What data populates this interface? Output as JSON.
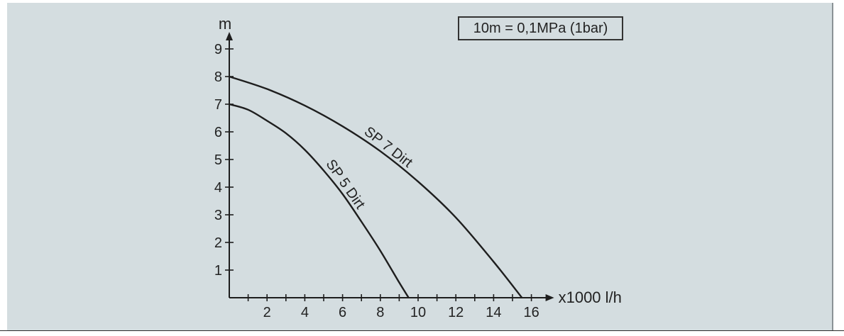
{
  "note": "10m = 0,1MPa (1bar)",
  "chart_data": {
    "type": "line",
    "ylabel": "m",
    "xlabel": "x1000 l/h",
    "xlim": [
      0,
      16
    ],
    "ylim": [
      0,
      9
    ],
    "x_ticks": [
      2,
      4,
      6,
      8,
      10,
      12,
      14,
      16
    ],
    "y_ticks": [
      1,
      2,
      3,
      4,
      5,
      6,
      7,
      8,
      9
    ],
    "grid": false,
    "series": [
      {
        "name": "SP 5 Dirt",
        "x": [
          0,
          1,
          2,
          3,
          4,
          5,
          6,
          7,
          8,
          9,
          9.5
        ],
        "y": [
          7.0,
          6.8,
          6.4,
          5.95,
          5.35,
          4.6,
          3.75,
          2.75,
          1.7,
          0.55,
          0
        ]
      },
      {
        "name": "SP 7 Dirt",
        "x": [
          0,
          2,
          4,
          6,
          8,
          10,
          12,
          14,
          15.5
        ],
        "y": [
          8.0,
          7.55,
          6.95,
          6.2,
          5.3,
          4.2,
          2.9,
          1.3,
          0
        ]
      }
    ]
  }
}
